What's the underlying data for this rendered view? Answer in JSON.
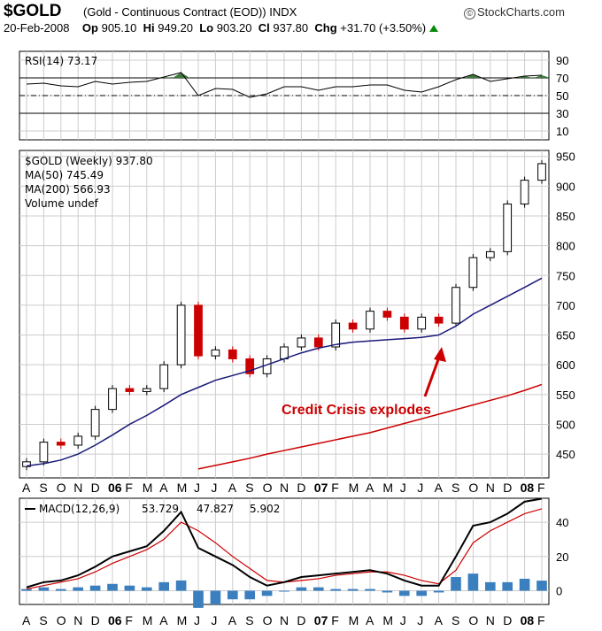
{
  "header": {
    "symbol": "$GOLD",
    "name": "(Gold - Continuous Contract (EOD)) INDX",
    "source": "StockCharts.com",
    "date": "20-Feb-2008",
    "op_label": "Op",
    "op": "905.10",
    "hi_label": "Hi",
    "hi": "949.20",
    "lo_label": "Lo",
    "lo": "903.20",
    "cl_label": "Cl",
    "cl": "937.80",
    "chg_label": "Chg",
    "chg": "+31.70 (+3.50%)"
  },
  "colors": {
    "up": "#000000",
    "down": "#cc0000",
    "ma50": "#1a1a7a",
    "ma200": "#cc0000",
    "macd_signal": "#cc0000",
    "histogram": "#3b7fbf",
    "rsi_fill": "#3d7a3d",
    "grid": "#cccccc"
  },
  "chart_data": [
    {
      "type": "line",
      "title": "RSI(14) 73.17",
      "legend": [
        "RSI(14) 73.17"
      ],
      "ylim": [
        0,
        100
      ],
      "yticks": [
        10,
        30,
        50,
        70,
        90
      ],
      "reference_lines": [
        30,
        50,
        70
      ],
      "x": [
        "A",
        "S",
        "O",
        "N",
        "D",
        "06",
        "F",
        "M",
        "A",
        "M",
        "J",
        "J",
        "A",
        "S",
        "O",
        "N",
        "D",
        "07",
        "F",
        "M",
        "A",
        "M",
        "J",
        "J",
        "A",
        "S",
        "O",
        "N",
        "D",
        "08",
        "F"
      ],
      "series": [
        {
          "name": "RSI(14)",
          "values": [
            63,
            64,
            61,
            60,
            66,
            63,
            65,
            66,
            71,
            76,
            50,
            58,
            57,
            48,
            52,
            60,
            60,
            56,
            60,
            60,
            62,
            62,
            56,
            54,
            60,
            68,
            74,
            66,
            69,
            72,
            73
          ]
        }
      ]
    },
    {
      "type": "candlestick",
      "title": "$GOLD (Weekly) 937.80",
      "legend": [
        "$GOLD (Weekly) 937.80",
        "MA(50) 745.49",
        "MA(200) 566.93",
        "Volume undef"
      ],
      "ylim": [
        410,
        960
      ],
      "yticks": [
        450,
        500,
        550,
        600,
        650,
        700,
        750,
        800,
        850,
        900,
        950
      ],
      "x": [
        "A",
        "S",
        "O",
        "N",
        "D",
        "06",
        "F",
        "M",
        "A",
        "M",
        "J",
        "J",
        "A",
        "S",
        "O",
        "N",
        "D",
        "07",
        "F",
        "M",
        "A",
        "M",
        "J",
        "J",
        "A",
        "S",
        "O",
        "N",
        "D",
        "08",
        "F"
      ],
      "series": [
        {
          "name": "$GOLD",
          "values": [
            437,
            470,
            465,
            480,
            525,
            560,
            555,
            560,
            600,
            700,
            615,
            625,
            610,
            585,
            610,
            630,
            645,
            630,
            670,
            660,
            690,
            680,
            660,
            680,
            670,
            730,
            780,
            790,
            870,
            910,
            937.8
          ]
        },
        {
          "name": "MA(50)",
          "values": [
            430,
            434,
            440,
            450,
            465,
            482,
            500,
            515,
            532,
            550,
            562,
            574,
            582,
            590,
            600,
            610,
            620,
            628,
            634,
            638,
            640,
            642,
            644,
            646,
            650,
            665,
            685,
            700,
            715,
            730,
            745.49
          ]
        },
        {
          "name": "MA(200)",
          "values": [
            null,
            null,
            null,
            null,
            null,
            null,
            null,
            null,
            null,
            null,
            425,
            431,
            437,
            443,
            450,
            456,
            462,
            468,
            474,
            480,
            486,
            null,
            null,
            null,
            null,
            null,
            null,
            null,
            548,
            557,
            566.93
          ]
        }
      ],
      "annotations": [
        "Credit Crisis explodes"
      ]
    },
    {
      "type": "line",
      "title": "MACD(12,26,9) 53.729, 47.827, 5.902",
      "legend": [
        "MACD(12,26,9)",
        "53.729",
        "47.827",
        "5.902"
      ],
      "ylim": [
        -8,
        54
      ],
      "yticks": [
        0,
        20,
        40
      ],
      "x": [
        "A",
        "S",
        "O",
        "N",
        "D",
        "06",
        "F",
        "M",
        "A",
        "M",
        "J",
        "J",
        "A",
        "S",
        "O",
        "N",
        "D",
        "07",
        "F",
        "M",
        "A",
        "M",
        "J",
        "J",
        "A",
        "S",
        "O",
        "N",
        "D",
        "08",
        "F"
      ],
      "series": [
        {
          "name": "MACD",
          "values": [
            2,
            5,
            6,
            9,
            14,
            20,
            23,
            26,
            35,
            46,
            25,
            20,
            15,
            8,
            3,
            5,
            8,
            9,
            10,
            11,
            12,
            10,
            6,
            3,
            3,
            20,
            38,
            40,
            45,
            52,
            53.729
          ]
        },
        {
          "name": "Signal",
          "values": [
            1,
            3,
            5,
            7,
            11,
            16,
            20,
            24,
            30,
            40,
            35,
            28,
            20,
            13,
            6,
            5,
            6,
            7,
            9,
            10,
            11,
            11,
            9,
            6,
            4,
            12,
            28,
            35,
            40,
            45,
            47.827
          ]
        },
        {
          "name": "Histogram",
          "values": [
            1,
            2,
            1,
            2,
            3,
            4,
            3,
            2,
            5,
            6,
            -10,
            -8,
            -5,
            -5,
            -3,
            0,
            2,
            2,
            1,
            1,
            1,
            -1,
            -3,
            -3,
            -1,
            8,
            10,
            5,
            5,
            7,
            5.902
          ]
        }
      ]
    }
  ]
}
